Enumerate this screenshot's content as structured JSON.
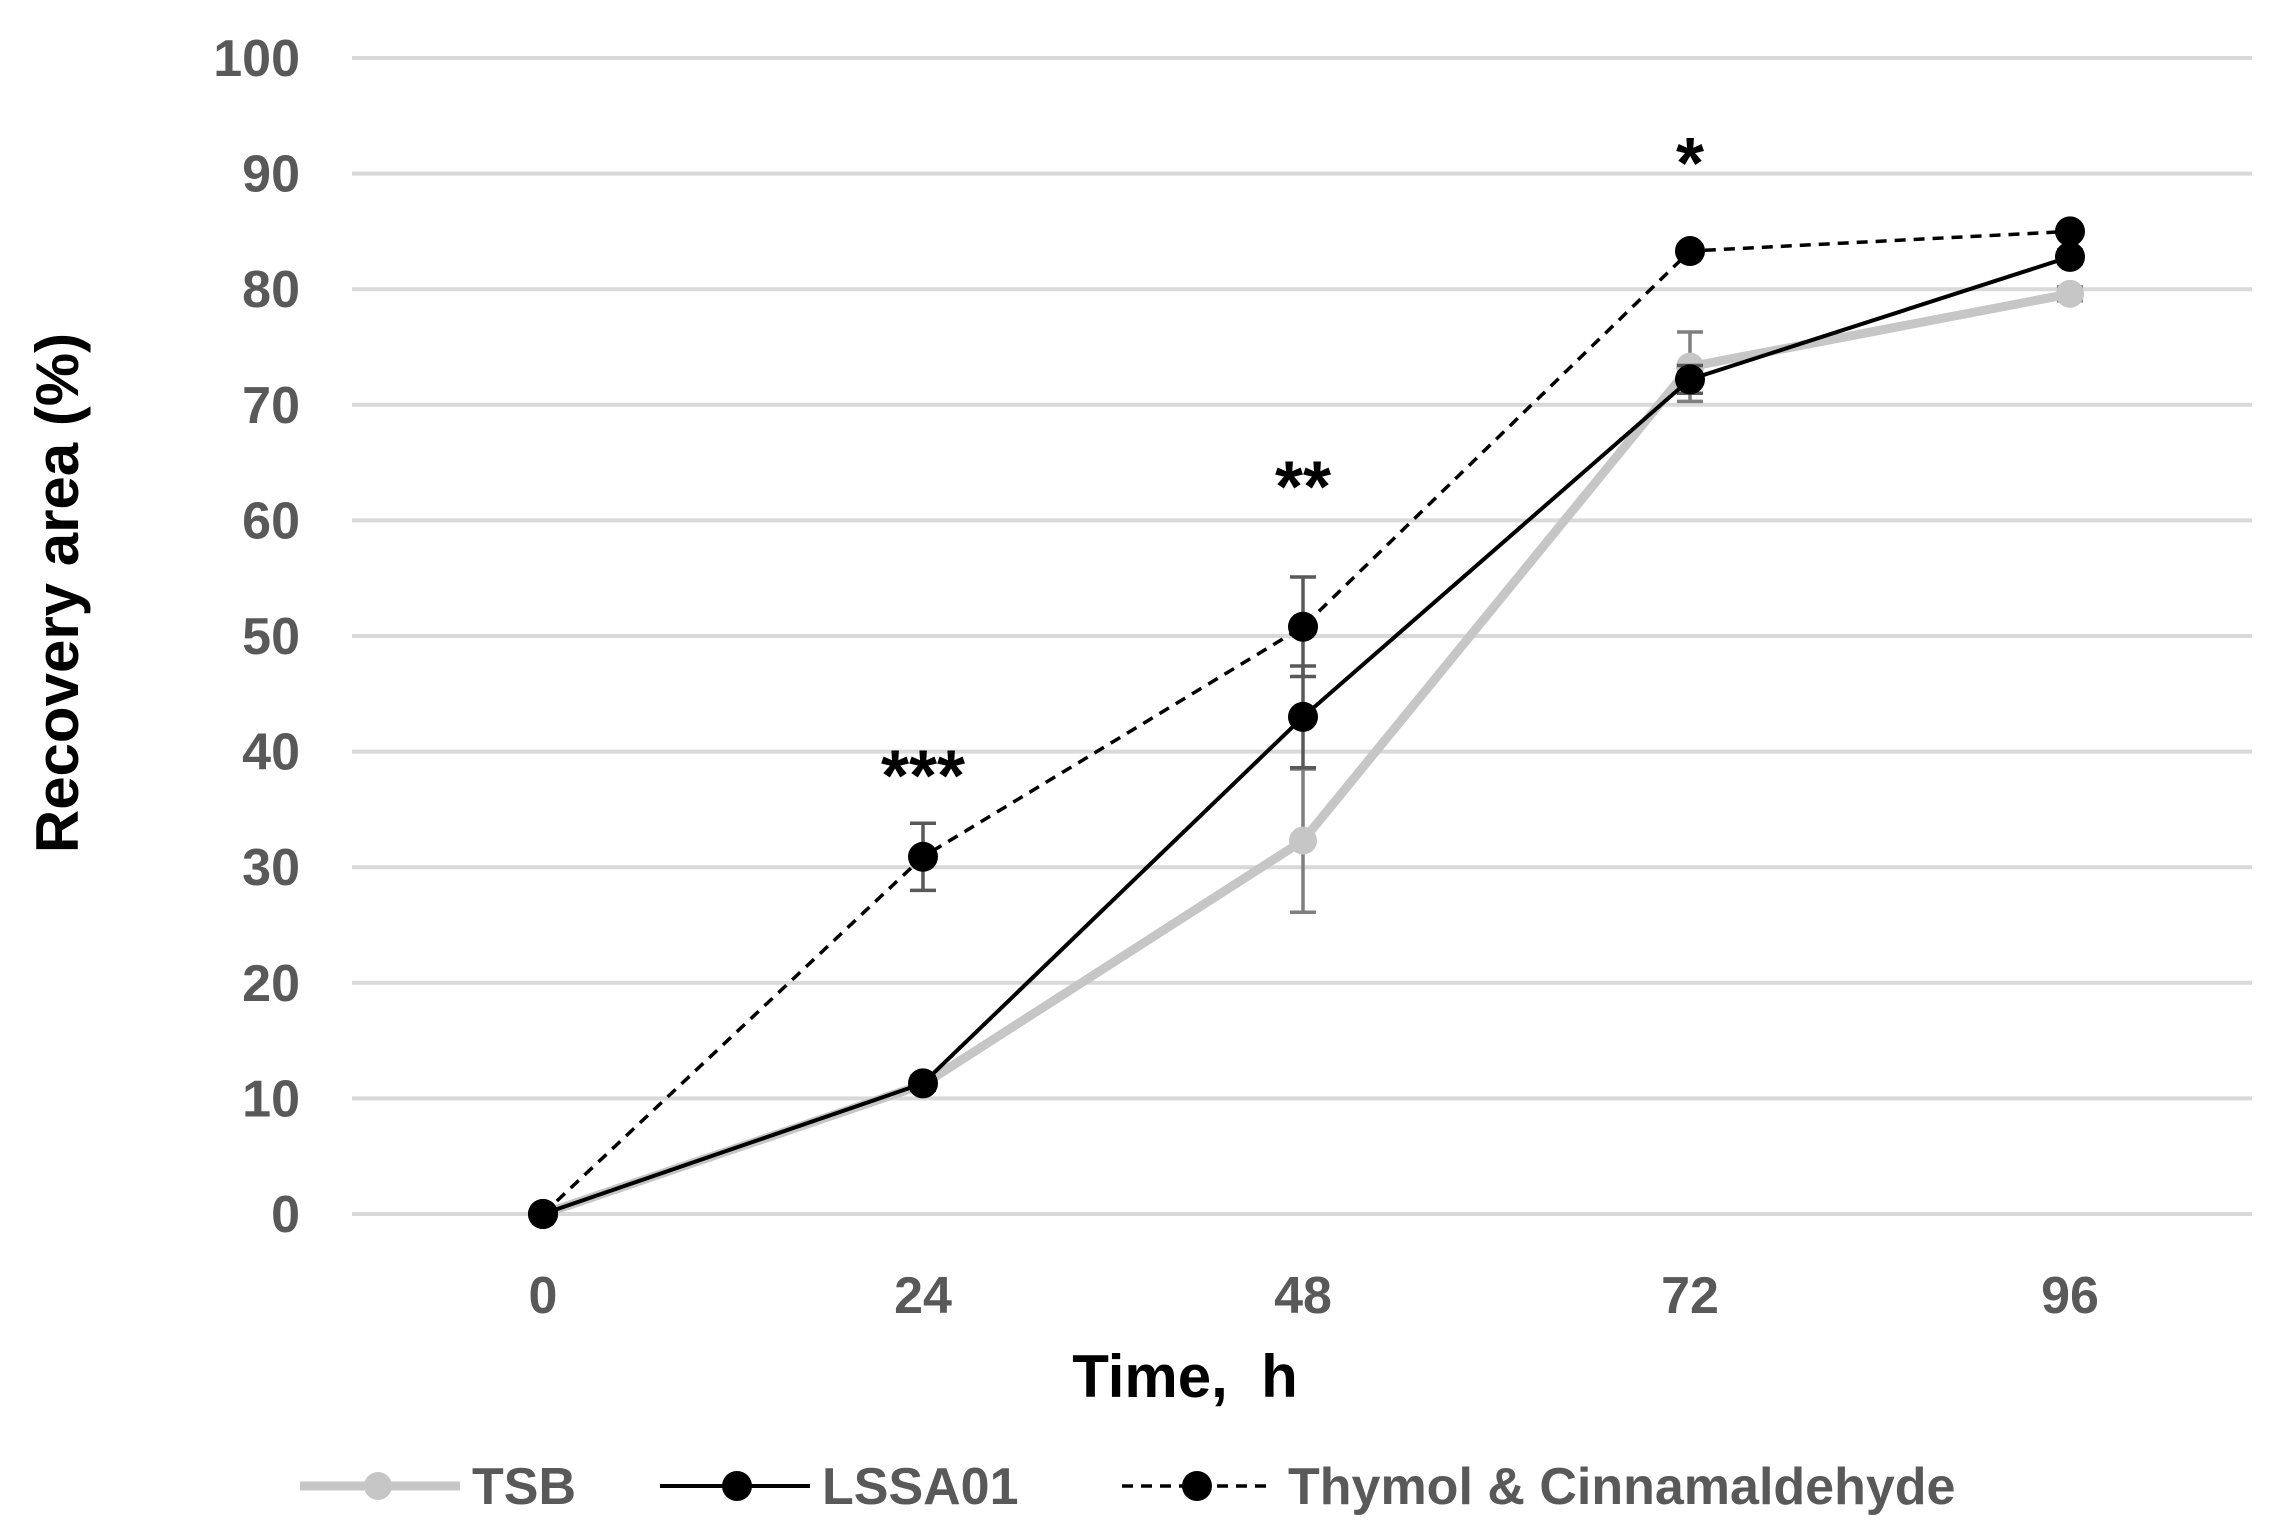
{
  "chart_data": {
    "type": "line",
    "title": "",
    "xlabel": "Time,  h",
    "ylabel": "Recovery area (%)",
    "x": [
      0,
      24,
      48,
      72,
      96
    ],
    "ylim": [
      0,
      100
    ],
    "yticks": [
      0,
      10,
      20,
      30,
      40,
      50,
      60,
      70,
      80,
      90,
      100
    ],
    "grid": true,
    "legend_position": "bottom",
    "series": [
      {
        "name": "TSB",
        "values": [
          0,
          11.2,
          32.3,
          73.3,
          79.6
        ],
        "errors": [
          0,
          0.5,
          6.2,
          3.0,
          0.6
        ],
        "color": "#c6c6c6",
        "style": "solid-thick"
      },
      {
        "name": "LSSA01",
        "values": [
          0,
          11.3,
          43.0,
          72.2,
          82.8
        ],
        "errors": [
          0,
          0.6,
          4.4,
          1.2,
          0.6
        ],
        "color": "#000000",
        "style": "solid"
      },
      {
        "name": "Thymol & Cinnamaldehyde",
        "values": [
          0,
          30.9,
          50.8,
          83.3,
          85.0
        ],
        "errors": [
          0,
          2.9,
          4.3,
          0.4,
          0.5
        ],
        "color": "#000000",
        "style": "dashed"
      }
    ],
    "annotations": [
      {
        "x": 24,
        "y": 38,
        "text": "***"
      },
      {
        "x": 48,
        "y": 63,
        "text": "**"
      },
      {
        "x": 72,
        "y": 91,
        "text": "*"
      }
    ]
  }
}
